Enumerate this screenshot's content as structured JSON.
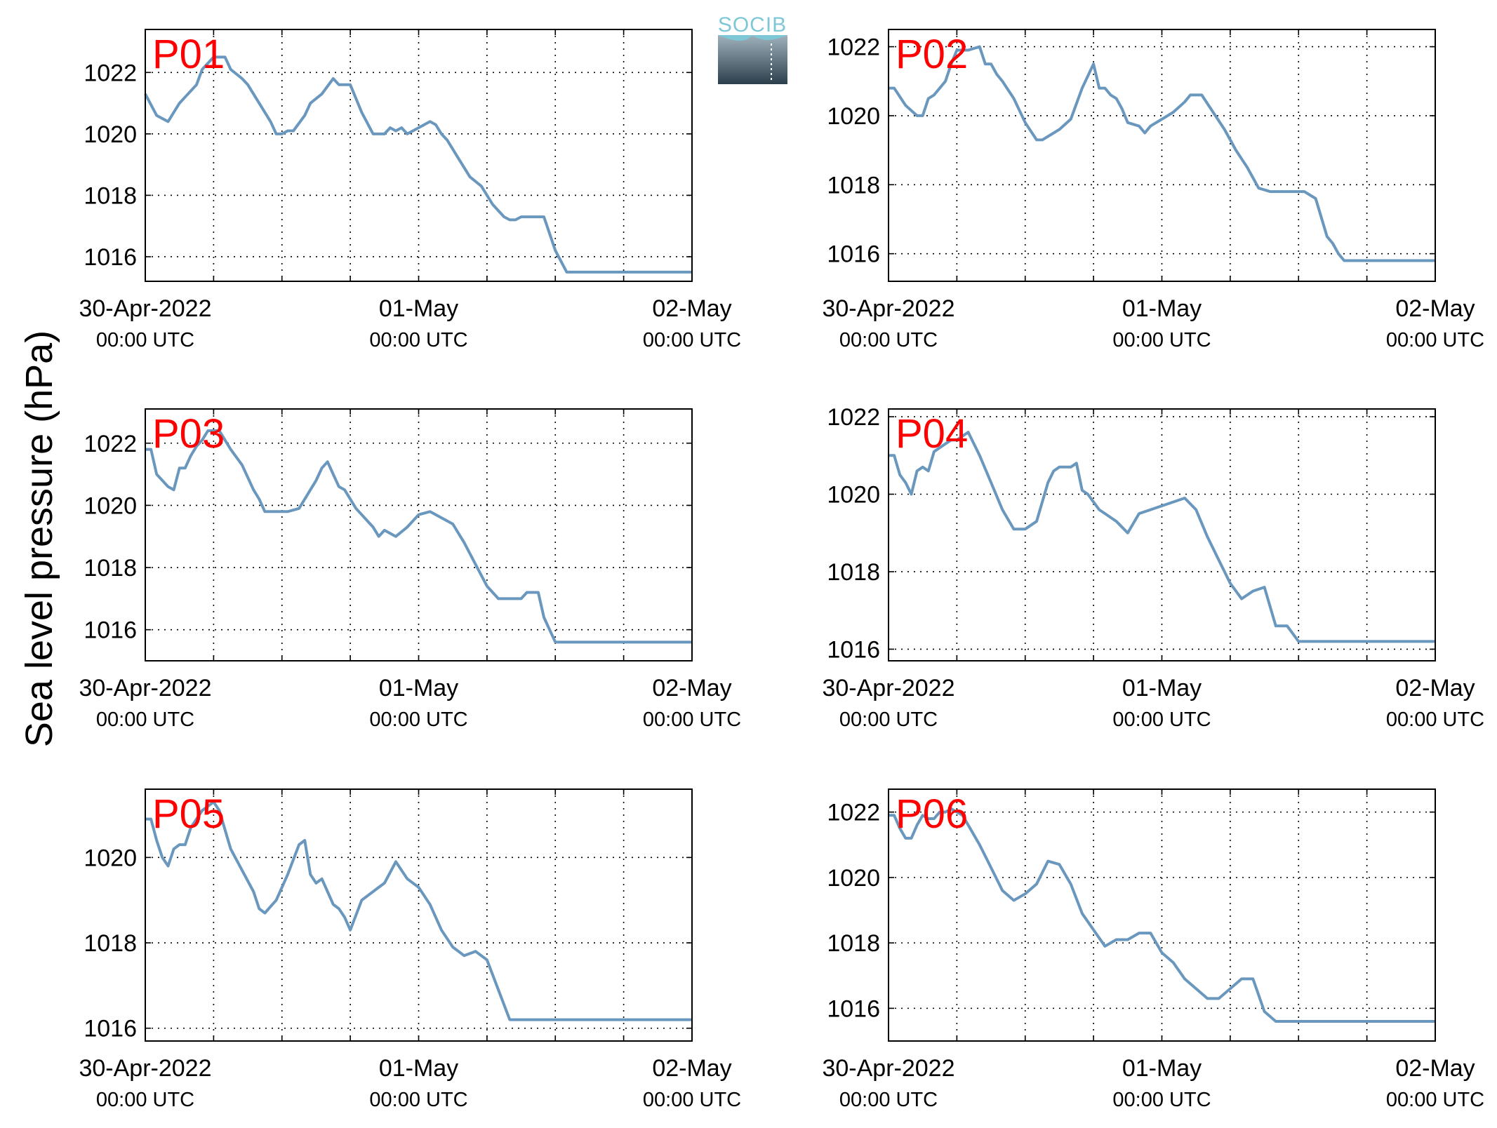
{
  "figure": {
    "ylabel": "Sea level pressure (hPa)",
    "logo_text": "SOCIB",
    "colors": {
      "line": "#6a97bd",
      "label": "#ff0000",
      "logo_top": "#7ec7d6",
      "logo_bottom": "#2c3f4c"
    }
  },
  "chart_data": [
    {
      "type": "line",
      "title": "P01",
      "xlabel": "",
      "ylabel": "",
      "xlim": [
        "2022-04-30 00:00 UTC",
        "2022-05-02 00:00 UTC"
      ],
      "ylim": [
        1015.2,
        1023.4
      ],
      "yticks": [
        1016,
        1018,
        1020,
        1022
      ],
      "grid": true,
      "xticks": [
        {
          "label": "30-Apr-2022",
          "sub": "00:00 UTC"
        },
        {
          "label": "01-May",
          "sub": "00:00 UTC"
        },
        {
          "label": "02-May",
          "sub": "00:00 UTC"
        }
      ],
      "series": [
        {
          "x": [
            0,
            2,
            4,
            6,
            7,
            9,
            10,
            12,
            14,
            15,
            17,
            18,
            20,
            22,
            23,
            24,
            25,
            26,
            28,
            29,
            31,
            33,
            34,
            36,
            38,
            40,
            42,
            43,
            44,
            45,
            46,
            48,
            50,
            51,
            52,
            53,
            55,
            57,
            59,
            60,
            61,
            63,
            64,
            65,
            66,
            68,
            70,
            72,
            74,
            75,
            76,
            77,
            78,
            80,
            82,
            84,
            86,
            88,
            90,
            91,
            92,
            94,
            96
          ],
          "y": [
            1021.3,
            1020.6,
            1020.4,
            1021.0,
            1021.2,
            1021.6,
            1022.1,
            1022.5,
            1022.5,
            1022.1,
            1021.8,
            1021.6,
            1021.0,
            1020.4,
            1020.0,
            1020.0,
            1020.1,
            1020.1,
            1020.6,
            1021.0,
            1021.3,
            1021.8,
            1021.6,
            1021.6,
            1020.7,
            1020.0,
            1020.0,
            1020.2,
            1020.1,
            1020.2,
            1020.0,
            1020.2,
            1020.4,
            1020.3,
            1020.0,
            1019.8,
            1019.2,
            1018.6,
            1018.3,
            1018.0,
            1017.7,
            1017.3,
            1017.2,
            1017.2,
            1017.3,
            1017.3,
            1017.3,
            1016.2,
            1015.5,
            1015.5,
            1015.5,
            1015.5,
            1015.5,
            1015.5,
            1015.5,
            1015.5,
            1015.5,
            1015.5,
            1015.5,
            1015.5,
            1015.5,
            1015.5,
            1015.5
          ]
        }
      ]
    },
    {
      "type": "line",
      "title": "P02",
      "xlabel": "",
      "ylabel": "",
      "xlim": [
        "2022-04-30 00:00 UTC",
        "2022-05-02 00:00 UTC"
      ],
      "ylim": [
        1015.2,
        1022.5
      ],
      "yticks": [
        1016,
        1018,
        1020,
        1022
      ],
      "grid": true,
      "xticks": [
        {
          "label": "30-Apr-2022",
          "sub": "00:00 UTC"
        },
        {
          "label": "01-May",
          "sub": "00:00 UTC"
        },
        {
          "label": "02-May",
          "sub": "00:00 UTC"
        }
      ],
      "series": [
        {
          "x": [
            0,
            1,
            3,
            5,
            6,
            7,
            8,
            10,
            11,
            12,
            14,
            16,
            17,
            18,
            19,
            20,
            22,
            24,
            26,
            27,
            28,
            30,
            32,
            34,
            36,
            37,
            38,
            39,
            40,
            41,
            42,
            44,
            45,
            46,
            48,
            50,
            52,
            53,
            55,
            57,
            59,
            61,
            63,
            65,
            67,
            69,
            71,
            73,
            75,
            77,
            78,
            79,
            80,
            82,
            84,
            86,
            88,
            90,
            92,
            94,
            96
          ],
          "y": [
            1020.8,
            1020.8,
            1020.3,
            1020.0,
            1020.0,
            1020.5,
            1020.6,
            1021.0,
            1021.5,
            1021.9,
            1021.9,
            1022.0,
            1021.5,
            1021.5,
            1021.2,
            1021.0,
            1020.5,
            1019.8,
            1019.3,
            1019.3,
            1019.4,
            1019.6,
            1019.9,
            1020.8,
            1021.5,
            1020.8,
            1020.8,
            1020.6,
            1020.5,
            1020.2,
            1019.8,
            1019.7,
            1019.5,
            1019.7,
            1019.9,
            1020.1,
            1020.4,
            1020.6,
            1020.6,
            1020.1,
            1019.6,
            1019.0,
            1018.5,
            1017.9,
            1017.8,
            1017.8,
            1017.8,
            1017.8,
            1017.6,
            1016.5,
            1016.3,
            1016.0,
            1015.8,
            1015.8,
            1015.8,
            1015.8,
            1015.8,
            1015.8,
            1015.8,
            1015.8,
            1015.8
          ]
        }
      ]
    },
    {
      "type": "line",
      "title": "P03",
      "xlabel": "",
      "ylabel": "",
      "xlim": [
        "2022-04-30 00:00 UTC",
        "2022-05-02 00:00 UTC"
      ],
      "ylim": [
        1015.0,
        1023.1
      ],
      "yticks": [
        1016,
        1018,
        1020,
        1022
      ],
      "grid": true,
      "xticks": [
        {
          "label": "30-Apr-2022",
          "sub": "00:00 UTC"
        },
        {
          "label": "01-May",
          "sub": "00:00 UTC"
        },
        {
          "label": "02-May",
          "sub": "00:00 UTC"
        }
      ],
      "series": [
        {
          "x": [
            0,
            1,
            2,
            3,
            4,
            5,
            6,
            7,
            8,
            9,
            10,
            11,
            12,
            13,
            15,
            17,
            19,
            20,
            21,
            23,
            25,
            27,
            29,
            30,
            31,
            32,
            34,
            35,
            37,
            38,
            39,
            40,
            41,
            42,
            44,
            46,
            48,
            50,
            52,
            54,
            56,
            58,
            60,
            61,
            62,
            64,
            66,
            67,
            68,
            69,
            70,
            71,
            72,
            80,
            90,
            96
          ],
          "y": [
            1021.8,
            1021.8,
            1021.0,
            1020.8,
            1020.6,
            1020.5,
            1021.2,
            1021.2,
            1021.6,
            1021.9,
            1022.1,
            1022.4,
            1022.4,
            1022.4,
            1021.8,
            1021.3,
            1020.5,
            1020.2,
            1019.8,
            1019.8,
            1019.8,
            1019.9,
            1020.5,
            1020.8,
            1021.2,
            1021.4,
            1020.6,
            1020.5,
            1019.9,
            1019.7,
            1019.5,
            1019.3,
            1019.0,
            1019.2,
            1019.0,
            1019.3,
            1019.7,
            1019.8,
            1019.6,
            1019.4,
            1018.8,
            1018.1,
            1017.4,
            1017.2,
            1017.0,
            1017.0,
            1017.0,
            1017.2,
            1017.2,
            1017.2,
            1016.4,
            1016.0,
            1015.6,
            1015.6,
            1015.6,
            1015.6
          ]
        }
      ]
    },
    {
      "type": "line",
      "title": "P04",
      "xlabel": "",
      "ylabel": "",
      "xlim": [
        "2022-04-30 00:00 UTC",
        "2022-05-02 00:00 UTC"
      ],
      "ylim": [
        1015.7,
        1022.2
      ],
      "yticks": [
        1016,
        1018,
        1020,
        1022
      ],
      "grid": true,
      "xticks": [
        {
          "label": "30-Apr-2022",
          "sub": "00:00 UTC"
        },
        {
          "label": "01-May",
          "sub": "00:00 UTC"
        },
        {
          "label": "02-May",
          "sub": "00:00 UTC"
        }
      ],
      "series": [
        {
          "x": [
            0,
            1,
            2,
            3,
            4,
            5,
            6,
            7,
            8,
            9,
            10,
            11,
            12,
            14,
            16,
            18,
            20,
            22,
            24,
            26,
            28,
            29,
            30,
            31,
            32,
            33,
            34,
            35,
            36,
            37,
            38,
            39,
            40,
            42,
            44,
            46,
            48,
            50,
            52,
            54,
            56,
            58,
            60,
            62,
            64,
            66,
            68,
            70,
            72,
            74,
            76,
            78,
            80,
            82,
            84,
            86,
            88,
            90,
            92,
            94,
            96
          ],
          "y": [
            1021.0,
            1021.0,
            1020.5,
            1020.3,
            1020.0,
            1020.6,
            1020.7,
            1020.6,
            1021.1,
            1021.2,
            1021.3,
            1021.4,
            1021.4,
            1021.6,
            1021.0,
            1020.3,
            1019.6,
            1019.1,
            1019.1,
            1019.3,
            1020.3,
            1020.6,
            1020.7,
            1020.7,
            1020.7,
            1020.8,
            1020.1,
            1020.0,
            1019.8,
            1019.6,
            1019.5,
            1019.4,
            1019.3,
            1019.0,
            1019.5,
            1019.6,
            1019.7,
            1019.8,
            1019.9,
            1019.6,
            1018.9,
            1018.3,
            1017.7,
            1017.3,
            1017.5,
            1017.6,
            1016.6,
            1016.6,
            1016.2,
            1016.2,
            1016.2,
            1016.2,
            1016.2,
            1016.2,
            1016.2,
            1016.2,
            1016.2,
            1016.2,
            1016.2,
            1016.2,
            1016.2
          ]
        }
      ]
    },
    {
      "type": "line",
      "title": "P05",
      "xlabel": "",
      "ylabel": "",
      "xlim": [
        "2022-04-30 00:00 UTC",
        "2022-05-02 00:00 UTC"
      ],
      "ylim": [
        1015.7,
        1021.6
      ],
      "yticks": [
        1016,
        1018,
        1020
      ],
      "grid": true,
      "xticks": [
        {
          "label": "30-Apr-2022",
          "sub": "00:00 UTC"
        },
        {
          "label": "01-May",
          "sub": "00:00 UTC"
        },
        {
          "label": "02-May",
          "sub": "00:00 UTC"
        }
      ],
      "series": [
        {
          "x": [
            0,
            1,
            2,
            3,
            4,
            5,
            6,
            7,
            8,
            9,
            10,
            11,
            12,
            13,
            15,
            17,
            19,
            20,
            21,
            23,
            25,
            27,
            28,
            29,
            30,
            31,
            32,
            33,
            34,
            35,
            36,
            38,
            40,
            41,
            42,
            44,
            46,
            48,
            50,
            52,
            54,
            56,
            58,
            60,
            62,
            64,
            66,
            68,
            70,
            72,
            74,
            76,
            78,
            80,
            82,
            84,
            86,
            88,
            90,
            92,
            94,
            96
          ],
          "y": [
            1020.9,
            1020.9,
            1020.4,
            1020.0,
            1019.8,
            1020.2,
            1020.3,
            1020.3,
            1020.7,
            1020.9,
            1021.1,
            1021.2,
            1021.3,
            1021.1,
            1020.2,
            1019.7,
            1019.2,
            1018.8,
            1018.7,
            1019.0,
            1019.6,
            1020.3,
            1020.4,
            1019.6,
            1019.4,
            1019.5,
            1019.2,
            1018.9,
            1018.8,
            1018.6,
            1018.3,
            1019.0,
            1019.2,
            1019.3,
            1019.4,
            1019.9,
            1019.5,
            1019.3,
            1018.9,
            1018.3,
            1017.9,
            1017.7,
            1017.8,
            1017.6,
            1016.9,
            1016.2,
            1016.2,
            1016.2,
            1016.2,
            1016.2,
            1016.2,
            1016.2,
            1016.2,
            1016.2,
            1016.2,
            1016.2,
            1016.2,
            1016.2,
            1016.2,
            1016.2,
            1016.2,
            1016.2
          ]
        }
      ]
    },
    {
      "type": "line",
      "title": "P06",
      "xlabel": "",
      "ylabel": "",
      "xlim": [
        "2022-04-30 00:00 UTC",
        "2022-05-02 00:00 UTC"
      ],
      "ylim": [
        1015.0,
        1022.7
      ],
      "yticks": [
        1016,
        1018,
        1020,
        1022
      ],
      "grid": true,
      "xticks": [
        {
          "label": "30-Apr-2022",
          "sub": "00:00 UTC"
        },
        {
          "label": "01-May",
          "sub": "00:00 UTC"
        },
        {
          "label": "02-May",
          "sub": "00:00 UTC"
        }
      ],
      "series": [
        {
          "x": [
            0,
            1,
            2,
            3,
            4,
            5,
            6,
            7,
            8,
            9,
            10,
            11,
            12,
            13,
            14,
            16,
            18,
            20,
            22,
            24,
            26,
            28,
            30,
            32,
            34,
            36,
            38,
            40,
            42,
            44,
            46,
            48,
            50,
            52,
            54,
            56,
            58,
            60,
            62,
            64,
            66,
            68,
            70,
            72,
            74,
            76,
            78,
            80,
            82,
            84,
            86,
            88,
            90,
            92,
            94,
            96
          ],
          "y": [
            1021.9,
            1021.9,
            1021.5,
            1021.2,
            1021.2,
            1021.6,
            1021.9,
            1021.8,
            1021.8,
            1022.0,
            1022.0,
            1022.1,
            1022.0,
            1021.9,
            1021.6,
            1021.0,
            1020.3,
            1019.6,
            1019.3,
            1019.5,
            1019.8,
            1020.5,
            1020.4,
            1019.8,
            1018.9,
            1018.4,
            1017.9,
            1018.1,
            1018.1,
            1018.3,
            1018.3,
            1017.7,
            1017.4,
            1016.9,
            1016.6,
            1016.3,
            1016.3,
            1016.6,
            1016.9,
            1016.9,
            1015.9,
            1015.6,
            1015.6,
            1015.6,
            1015.6,
            1015.6,
            1015.6,
            1015.6,
            1015.6,
            1015.6,
            1015.6,
            1015.6,
            1015.6,
            1015.6,
            1015.6,
            1015.6
          ]
        }
      ]
    }
  ]
}
